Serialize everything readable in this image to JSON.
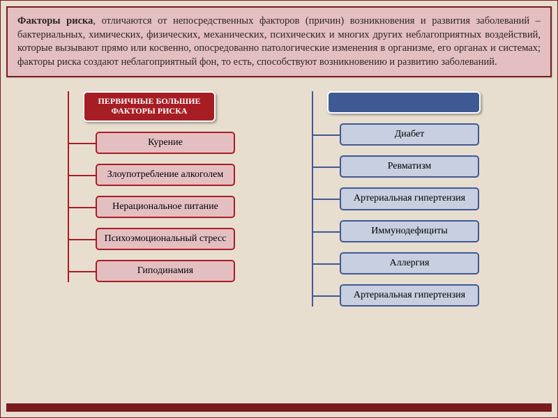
{
  "canvas": {
    "bg": "#e8decf",
    "outer_border": "#7a1b1f"
  },
  "description": {
    "bold_lead": "Факторы риска",
    "rest": ", отличаются от непосредственных факторов (причин) возникновения и развития заболеваний – бактериальных, химических, физических, механических, психических и многих других неблагоприятных воздействий, которые вызывают прямо или косвенно, опосредованно патологические изменения в организме, его органах и системах;  факторы риска создают неблагоприятный фон, то есть, способствуют возникновению и развитию заболеваний.",
    "bg": "#e3bfc2",
    "border": "#7a1b1f",
    "text_color": "#2d2323"
  },
  "left": {
    "title": "ПЕРВИЧНЫЕ БОЛЬШИЕ ФАКТОРЫ РИСКА",
    "header_bg": "#a71d24",
    "spine_color": "#a71d24",
    "item_bg": "#e3bfc2",
    "item_border": "#a71d24",
    "item_shadow": "#c44a52",
    "items": [
      "Курение",
      "Злоупотребление алкоголем",
      "Нерациональное питание",
      "Психоэмоциональный стресс",
      "Гиподинамия"
    ]
  },
  "right": {
    "title": "",
    "header_bg": "#3f5a93",
    "spine_color": "#3f5a93",
    "item_bg": "#c7cfe0",
    "item_border": "#3f5a93",
    "item_shadow": "#6b7fa8",
    "items": [
      "Диабет",
      "Ревматизм",
      "Артериальная гипертензия",
      "Иммунодефициты",
      "Аллергия",
      "Артериальная гипертензия"
    ]
  },
  "bottom_bar_color": "#7a1b1f"
}
